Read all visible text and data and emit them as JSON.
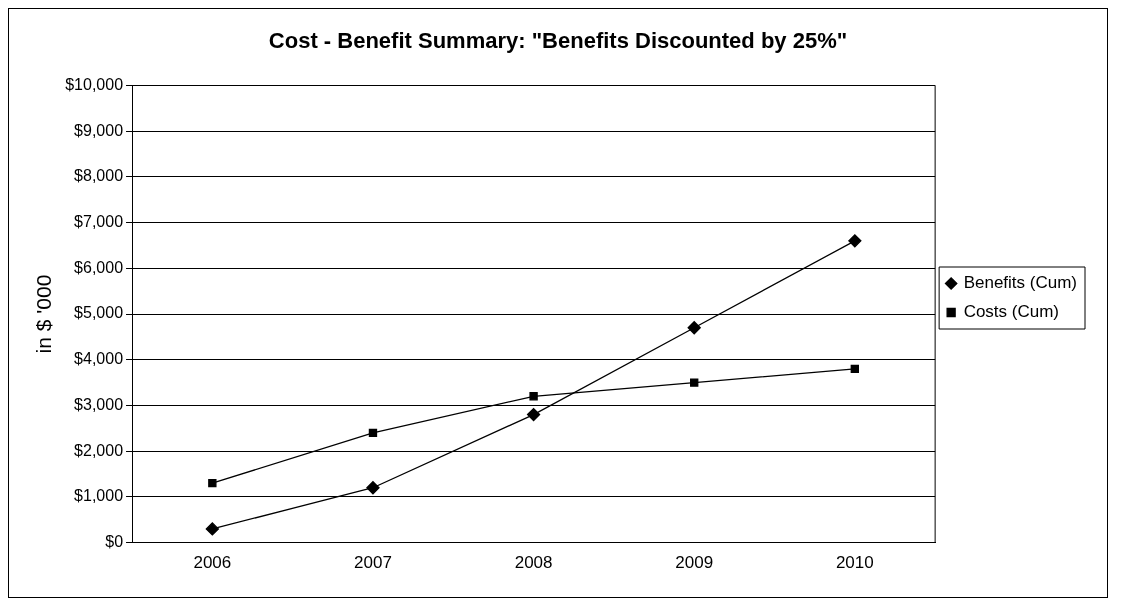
{
  "chart_data": {
    "type": "line",
    "title": "Cost - Benefit Summary: \"Benefits Discounted by 25%\"",
    "ylabel": "in $ '000",
    "categories": [
      "2006",
      "2007",
      "2008",
      "2009",
      "2010"
    ],
    "series": [
      {
        "name": "Benefits (Cum)",
        "color": "#000000",
        "values": [
          300,
          1200,
          2800,
          4700,
          6600
        ],
        "marker": "diamond"
      },
      {
        "name": "Costs (Cum)",
        "color": "#000000",
        "values": [
          1300,
          2400,
          3200,
          3500,
          3800
        ],
        "marker": "square"
      }
    ],
    "ylim": [
      0,
      10000
    ],
    "yticks": [
      {
        "value": 0,
        "label": "$0"
      },
      {
        "value": 1000,
        "label": "$1,000"
      },
      {
        "value": 2000,
        "label": "$2,000"
      },
      {
        "value": 3000,
        "label": "$3,000"
      },
      {
        "value": 4000,
        "label": "$4,000"
      },
      {
        "value": 5000,
        "label": "$5,000"
      },
      {
        "value": 6000,
        "label": "$6,000"
      },
      {
        "value": 7000,
        "label": "$7,000"
      },
      {
        "value": 8000,
        "label": "$8,000"
      },
      {
        "value": 9000,
        "label": "$9,000"
      },
      {
        "value": 10000,
        "label": "$10,000"
      }
    ],
    "grid": "y",
    "legend": "right",
    "line_style": "solid"
  }
}
